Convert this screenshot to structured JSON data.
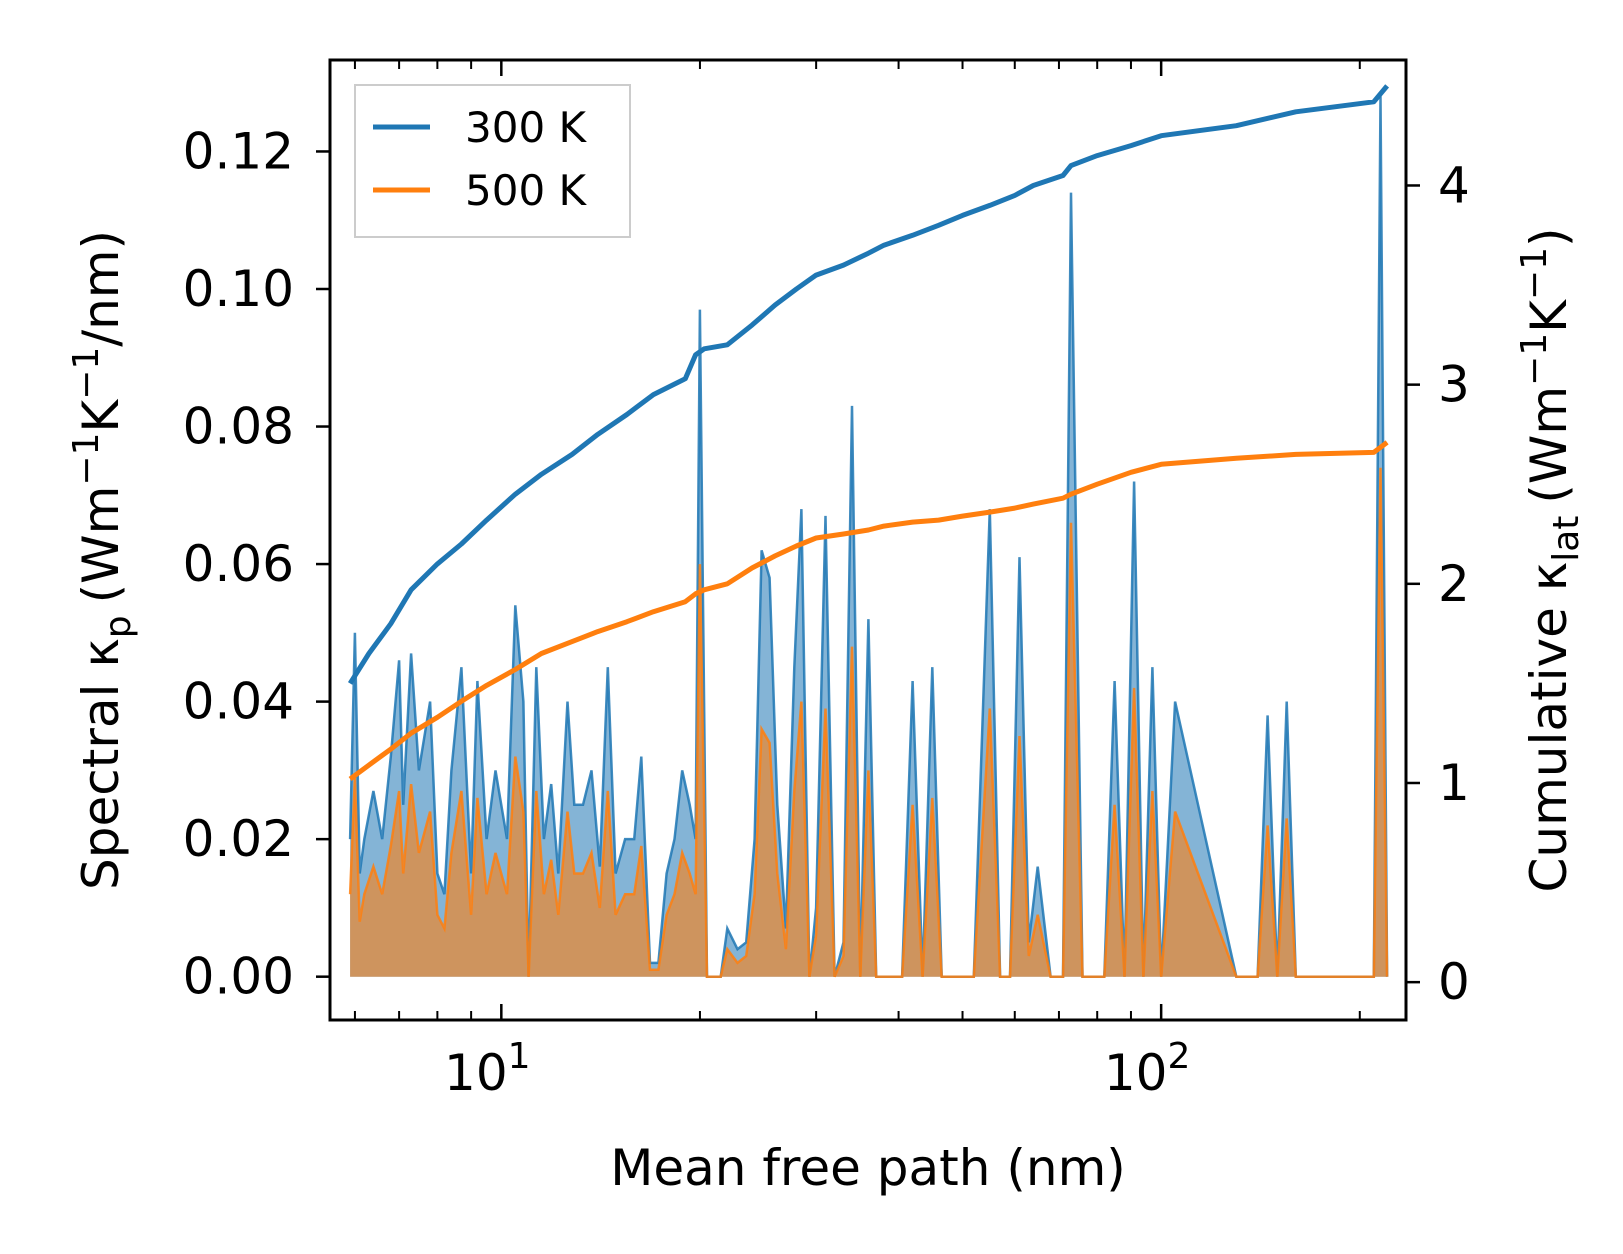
{
  "chart_data": {
    "type": "line",
    "xscale": "log",
    "xlabel": "Mean free path (nm)",
    "ylabel_left": {
      "base": "Spectral κ",
      "sub": "p",
      "unit_pre": "(Wm",
      "sup1": "−1",
      "unit_mid": "K",
      "sup2": "−1",
      "unit_post": "/nm)"
    },
    "ylabel_right": {
      "base": "Cumulative κ",
      "sub": "lat",
      "unit_pre": "(Wm",
      "sup1": "−1",
      "unit_mid": "K",
      "sup2": "−1",
      "unit_post": ")"
    },
    "xlim": [
      5.5,
      235
    ],
    "ylim_left": [
      -0.0063,
      0.1333
    ],
    "ylim_right": [
      -0.19,
      4.63
    ],
    "x_ticks": [
      {
        "value": 10,
        "base": "10",
        "exp": "1"
      },
      {
        "value": 100,
        "base": "10",
        "exp": "2"
      }
    ],
    "y_ticks_left": [
      "0.00",
      "0.02",
      "0.04",
      "0.06",
      "0.08",
      "0.10",
      "0.12"
    ],
    "y_ticks_right": [
      "0",
      "1",
      "2",
      "3",
      "4"
    ],
    "legend": {
      "position": "top-left",
      "entries": [
        "300 K",
        "500 K"
      ]
    },
    "colors": {
      "300 K": "#1f77b4",
      "500 K": "#ff7f0e"
    },
    "cumulative": {
      "x": [
        5.9,
        6.3,
        6.8,
        7.3,
        8.0,
        8.7,
        9.5,
        10.5,
        11.5,
        12.8,
        14.0,
        15.5,
        17.0,
        19.0,
        19.7,
        20.3,
        22.0,
        24.0,
        26.0,
        28.0,
        30.0,
        33.0,
        36.0,
        38.0,
        42.0,
        46.0,
        50.0,
        55.0,
        60.0,
        64.0,
        71.0,
        73.0,
        80.0,
        90.0,
        100.0,
        130.0,
        160.0,
        210.0,
        220.0
      ],
      "series": [
        {
          "name": "300 K",
          "values": [
            1.5,
            1.65,
            1.8,
            1.97,
            2.1,
            2.2,
            2.32,
            2.45,
            2.55,
            2.65,
            2.75,
            2.85,
            2.95,
            3.03,
            3.15,
            3.18,
            3.2,
            3.3,
            3.4,
            3.48,
            3.55,
            3.6,
            3.66,
            3.7,
            3.75,
            3.8,
            3.85,
            3.9,
            3.95,
            4.0,
            4.05,
            4.1,
            4.15,
            4.2,
            4.25,
            4.3,
            4.37,
            4.42,
            4.5
          ]
        },
        {
          "name": "500 K",
          "values": [
            1.02,
            1.09,
            1.17,
            1.25,
            1.33,
            1.41,
            1.49,
            1.57,
            1.65,
            1.71,
            1.76,
            1.81,
            1.86,
            1.91,
            1.95,
            1.97,
            2.0,
            2.08,
            2.14,
            2.19,
            2.23,
            2.25,
            2.27,
            2.29,
            2.31,
            2.32,
            2.34,
            2.36,
            2.38,
            2.4,
            2.43,
            2.45,
            2.5,
            2.56,
            2.6,
            2.63,
            2.65,
            2.66,
            2.71
          ]
        }
      ]
    },
    "spectral": {
      "x": [
        5.9,
        6.0,
        6.1,
        6.2,
        6.4,
        6.6,
        6.8,
        7.0,
        7.1,
        7.3,
        7.5,
        7.8,
        8.0,
        8.2,
        8.4,
        8.7,
        9.0,
        9.2,
        9.5,
        9.8,
        10.2,
        10.5,
        10.8,
        11.0,
        11.3,
        11.6,
        11.9,
        12.2,
        12.6,
        12.9,
        13.3,
        13.7,
        14.1,
        14.5,
        14.9,
        15.4,
        15.9,
        16.3,
        16.8,
        17.3,
        17.8,
        18.3,
        18.8,
        19.3,
        19.7,
        20.0,
        20.5,
        21.0,
        21.5,
        22.0,
        22.8,
        23.5,
        24.2,
        24.8,
        25.5,
        26.2,
        27.0,
        27.8,
        28.5,
        29.3,
        30.0,
        31.0,
        32.0,
        33.0,
        34.0,
        35.0,
        36.0,
        37.0,
        38.0,
        39.0,
        40.5,
        42.0,
        43.5,
        45.0,
        46.5,
        48.0,
        50.0,
        52.0,
        55.0,
        57.0,
        59.0,
        61.0,
        63.0,
        65.0,
        68.0,
        71.0,
        73.0,
        76.0,
        79.0,
        82.0,
        85.0,
        88.0,
        91.0,
        94.0,
        97.0,
        100.0,
        105.0,
        130.0,
        140.0,
        145.0,
        150.0,
        155.0,
        160.0,
        165.0,
        170.0,
        200.0,
        210.0,
        215.0,
        220.0
      ],
      "series": [
        {
          "name": "300 K",
          "values": [
            0.02,
            0.05,
            0.015,
            0.02,
            0.027,
            0.02,
            0.032,
            0.046,
            0.025,
            0.047,
            0.03,
            0.04,
            0.015,
            0.012,
            0.03,
            0.045,
            0.015,
            0.043,
            0.02,
            0.03,
            0.02,
            0.054,
            0.04,
            0.0,
            0.045,
            0.02,
            0.028,
            0.015,
            0.04,
            0.025,
            0.025,
            0.03,
            0.016,
            0.045,
            0.015,
            0.02,
            0.02,
            0.032,
            0.002,
            0.002,
            0.015,
            0.02,
            0.03,
            0.025,
            0.02,
            0.097,
            0.0,
            0.0,
            0.0,
            0.007,
            0.004,
            0.005,
            0.02,
            0.062,
            0.058,
            0.025,
            0.007,
            0.045,
            0.068,
            0.0,
            0.01,
            0.067,
            0.0,
            0.005,
            0.083,
            0.0,
            0.052,
            0.0,
            0.0,
            0.0,
            0.0,
            0.043,
            0.0,
            0.045,
            0.0,
            0.0,
            0.0,
            0.0,
            0.068,
            0.0,
            0.0,
            0.061,
            0.005,
            0.016,
            0.0,
            0.0,
            0.114,
            0.0,
            0.0,
            0.0,
            0.043,
            0.0,
            0.072,
            0.0,
            0.045,
            0.0,
            0.04,
            0.0,
            0.0,
            0.038,
            0.0,
            0.04,
            0.0,
            0.0,
            0.0,
            0.0,
            0.0,
            0.128,
            0.0
          ]
        },
        {
          "name": "500 K",
          "values": [
            0.012,
            0.029,
            0.008,
            0.012,
            0.016,
            0.012,
            0.019,
            0.027,
            0.015,
            0.028,
            0.018,
            0.024,
            0.009,
            0.007,
            0.018,
            0.027,
            0.009,
            0.026,
            0.012,
            0.018,
            0.012,
            0.032,
            0.024,
            0.0,
            0.027,
            0.012,
            0.017,
            0.009,
            0.024,
            0.015,
            0.015,
            0.018,
            0.01,
            0.027,
            0.009,
            0.012,
            0.012,
            0.019,
            0.001,
            0.001,
            0.009,
            0.012,
            0.018,
            0.015,
            0.012,
            0.06,
            0.0,
            0.0,
            0.0,
            0.004,
            0.002,
            0.003,
            0.012,
            0.036,
            0.034,
            0.015,
            0.004,
            0.027,
            0.04,
            0.0,
            0.006,
            0.039,
            0.0,
            0.003,
            0.048,
            0.0,
            0.03,
            0.0,
            0.0,
            0.0,
            0.0,
            0.025,
            0.0,
            0.026,
            0.0,
            0.0,
            0.0,
            0.0,
            0.039,
            0.0,
            0.0,
            0.035,
            0.003,
            0.009,
            0.0,
            0.0,
            0.066,
            0.0,
            0.0,
            0.0,
            0.025,
            0.0,
            0.042,
            0.0,
            0.027,
            0.0,
            0.024,
            0.0,
            0.0,
            0.022,
            0.0,
            0.023,
            0.0,
            0.0,
            0.0,
            0.0,
            0.0,
            0.074,
            0.0
          ]
        }
      ]
    }
  }
}
